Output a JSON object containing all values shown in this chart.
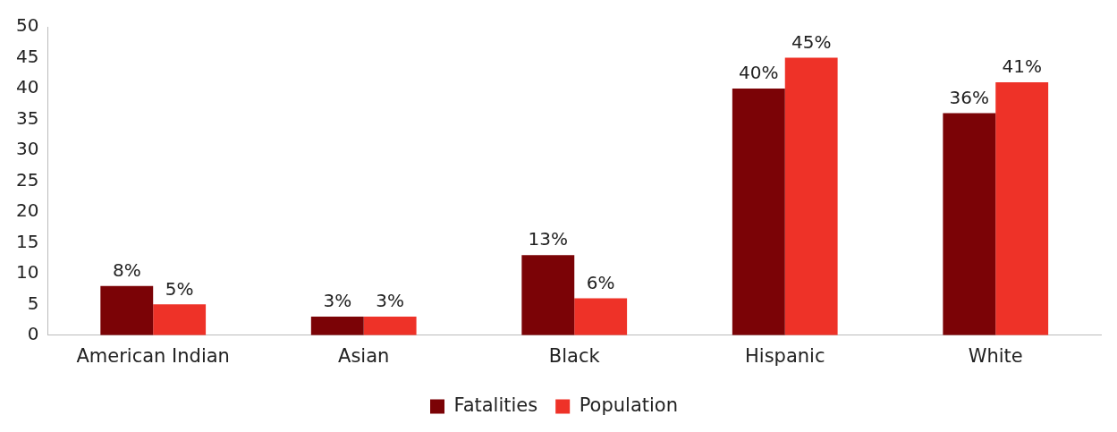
{
  "chart_data": {
    "type": "bar",
    "categories": [
      "American Indian",
      "Asian",
      "Black",
      "Hispanic",
      "White"
    ],
    "series": [
      {
        "name": "Fatalities",
        "color": "#7b0306",
        "values": [
          8,
          3,
          13,
          40,
          36
        ],
        "value_labels": [
          "8%",
          "3%",
          "13%",
          "40%",
          "36%"
        ]
      },
      {
        "name": "Population",
        "color": "#ee3228",
        "values": [
          5,
          3,
          6,
          45,
          41
        ],
        "value_labels": [
          "5%",
          "3%",
          "6%",
          "45%",
          "41%"
        ]
      }
    ],
    "ylim": [
      0,
      50
    ],
    "yticks": [
      0,
      5,
      10,
      15,
      20,
      25,
      30,
      35,
      40,
      45,
      50
    ],
    "grid": false,
    "legend": "bottom"
  }
}
